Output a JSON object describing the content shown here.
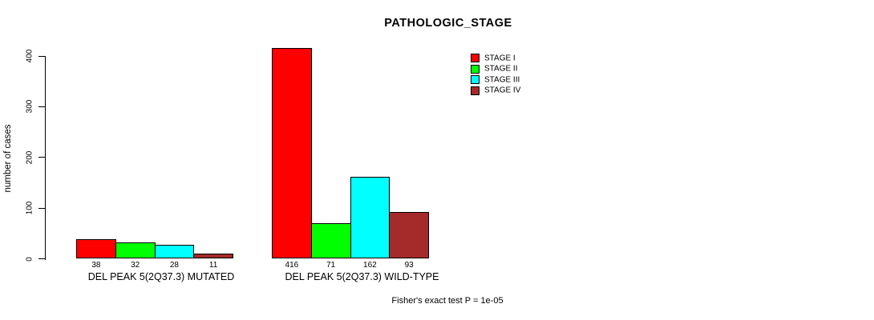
{
  "window": {
    "background": "#FFFFFF"
  },
  "chart_data": {
    "type": "bar",
    "title": "PATHOLOGIC_STAGE",
    "ylabel": "number of cases",
    "xlabel": "",
    "ylim": [
      0,
      400
    ],
    "yticks": [
      0,
      100,
      200,
      300,
      400
    ],
    "grid": false,
    "bar_border_color": "#000000",
    "categories": [
      "DEL PEAK 5(2Q37.3) MUTATED",
      "DEL PEAK 5(2Q37.3) WILD-TYPE"
    ],
    "series": [
      {
        "name": "STAGE I",
        "color": "#FF0000",
        "values": [
          38,
          416
        ]
      },
      {
        "name": "STAGE II",
        "color": "#00FF00",
        "values": [
          32,
          71
        ]
      },
      {
        "name": "STAGE III",
        "color": "#00FFFF",
        "values": [
          28,
          162
        ]
      },
      {
        "name": "STAGE IV",
        "color": "#A52A2A",
        "values": [
          11,
          93
        ]
      }
    ],
    "value_labels": [
      [
        "38",
        "32",
        "28",
        "11"
      ],
      [
        "416",
        "71",
        "162",
        "93"
      ]
    ],
    "legend": {
      "position": "top-right",
      "entries": [
        "STAGE I",
        "STAGE II",
        "STAGE III",
        "STAGE IV"
      ]
    },
    "annotation": "Fisher's exact test P = 1e-05"
  }
}
